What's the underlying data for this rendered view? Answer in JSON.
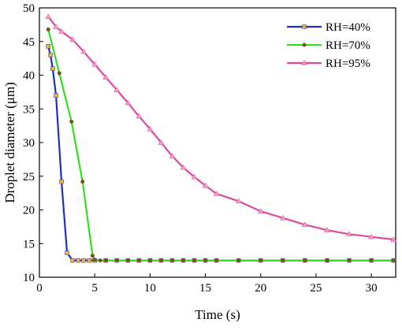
{
  "chart_data": {
    "type": "line",
    "xlabel": "Time (s)",
    "ylabel": "Droplet diameter (μm)",
    "xlim": [
      0,
      32.2
    ],
    "ylim": [
      10,
      50
    ],
    "x_ticks": [
      0,
      5,
      10,
      15,
      20,
      25,
      30
    ],
    "y_ticks": [
      10,
      15,
      20,
      25,
      30,
      35,
      40,
      45,
      50
    ],
    "grid": false,
    "legend_position": "top-right",
    "series": [
      {
        "name": "RH=40%",
        "color": "#1f2fbf",
        "marker": "square",
        "marker_color": "#f0b23a",
        "x": [
          0.8,
          1.0,
          1.2,
          1.5,
          2.0,
          2.5,
          3.0,
          3.5,
          4.0,
          4.5,
          5.0,
          6.0,
          7.0,
          8.0,
          9.0,
          10.0,
          11.0,
          12.0,
          13.0,
          14.0,
          15.0,
          16.0,
          18.0,
          20.0,
          22.0,
          24.0,
          26.0,
          28.0,
          30.0,
          32.0
        ],
        "y": [
          44.3,
          43.0,
          41.0,
          37.0,
          24.2,
          13.6,
          12.5,
          12.5,
          12.5,
          12.5,
          12.5,
          12.5,
          12.5,
          12.5,
          12.5,
          12.5,
          12.5,
          12.5,
          12.5,
          12.5,
          12.5,
          12.5,
          12.5,
          12.5,
          12.5,
          12.5,
          12.5,
          12.5,
          12.5,
          12.5
        ]
      },
      {
        "name": "RH=70%",
        "color": "#33dd22",
        "marker": "circle",
        "marker_color": "#6b5a1a",
        "x": [
          0.8,
          1.8,
          2.9,
          3.9,
          4.8,
          5.0,
          5.5,
          6.0,
          7.0,
          8.0,
          9.0,
          10.0,
          11.0,
          12.0,
          13.0,
          14.0,
          15.0,
          16.0,
          18.0,
          20.0,
          22.0,
          24.0,
          26.0,
          28.0,
          30.0,
          32.0
        ],
        "y": [
          46.8,
          40.3,
          33.1,
          24.2,
          13.2,
          12.6,
          12.5,
          12.5,
          12.5,
          12.5,
          12.5,
          12.5,
          12.5,
          12.5,
          12.5,
          12.5,
          12.5,
          12.5,
          12.5,
          12.5,
          12.5,
          12.5,
          12.5,
          12.5,
          12.5,
          12.5
        ]
      },
      {
        "name": "RH=95%",
        "color": "#e0489a",
        "marker": "triangle",
        "marker_color": "#e9a0c6",
        "x": [
          0.8,
          1.5,
          2.0,
          3.0,
          4.0,
          5.0,
          6.0,
          7.0,
          8.0,
          9.0,
          10.0,
          11.0,
          12.0,
          13.0,
          14.0,
          15.0,
          16.0,
          18.0,
          20.0,
          22.0,
          24.0,
          26.0,
          28.0,
          30.0,
          32.0
        ],
        "y": [
          48.7,
          47.2,
          46.5,
          45.3,
          43.5,
          41.6,
          39.7,
          37.8,
          35.9,
          33.9,
          32.0,
          30.0,
          28.0,
          26.3,
          24.9,
          23.6,
          22.4,
          21.3,
          19.8,
          18.8,
          17.8,
          17.0,
          16.4,
          16.0,
          15.6
        ]
      }
    ]
  }
}
